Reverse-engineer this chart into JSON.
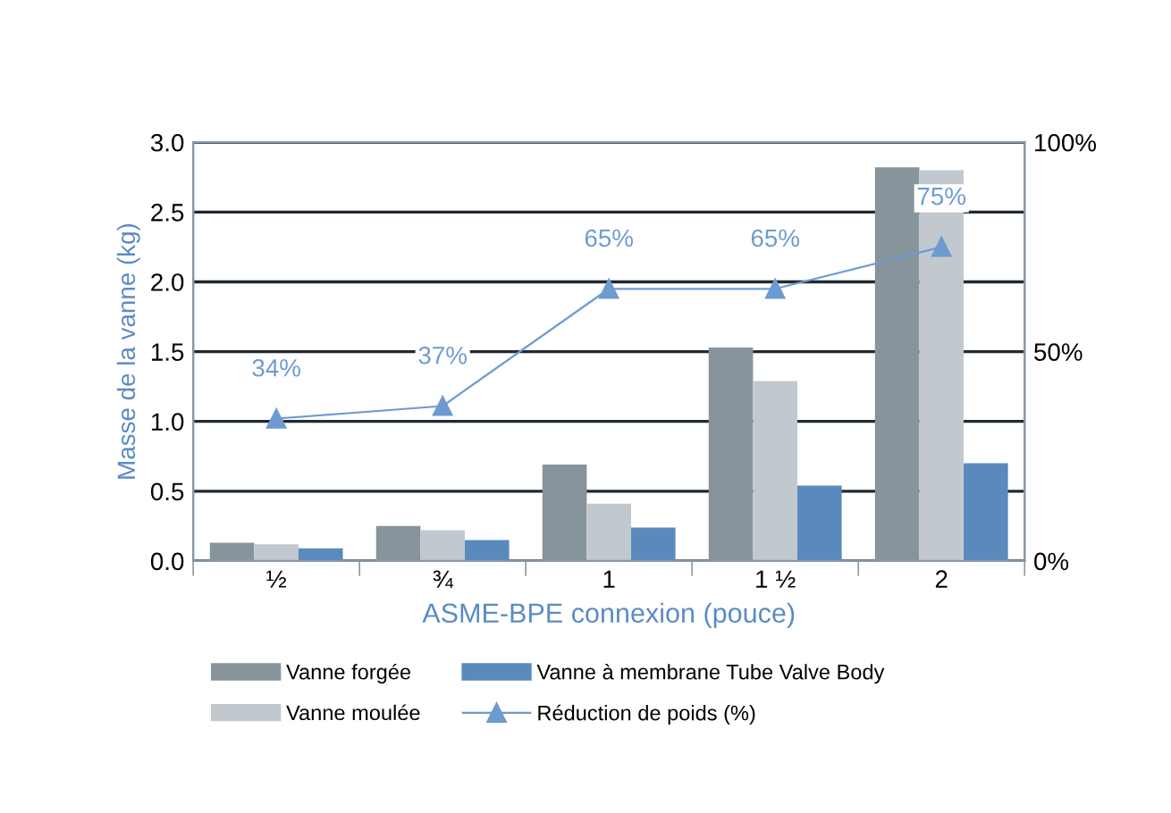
{
  "chart_data": {
    "type": "bar",
    "xlabel": "ASME-BPE connexion (pouce)",
    "ylabel": "Masse de la vanne (kg)",
    "categories": [
      "½",
      "¾",
      "1",
      "1 ½",
      "2"
    ],
    "series": [
      {
        "name": "Vanne forgée",
        "color": "#87949c",
        "values": [
          0.13,
          0.25,
          0.69,
          1.53,
          2.82
        ]
      },
      {
        "name": "Vanne moulée",
        "color": "#c1c9cf",
        "values": [
          0.12,
          0.22,
          0.41,
          1.29,
          2.8
        ]
      },
      {
        "name": "Vanne à membrane Tube Valve Body",
        "color": "#5a8abb",
        "values": [
          0.09,
          0.15,
          0.24,
          0.54,
          0.7
        ]
      },
      {
        "name": "Réduction de poids (%)",
        "type": "line",
        "axis": "y2",
        "color": "#6d9bd0",
        "marker": "triangle",
        "values": [
          34,
          37,
          65,
          65,
          75
        ],
        "value_labels": [
          "34%",
          "37%",
          "65%",
          "65%",
          "75%"
        ]
      }
    ],
    "ylim": [
      0,
      3
    ],
    "yticks": [
      {
        "value": 0,
        "label": "0.0"
      },
      {
        "value": 0.5,
        "label": "0.5"
      },
      {
        "value": 1,
        "label": "1.0"
      },
      {
        "value": 1.5,
        "label": "1.5"
      },
      {
        "value": 2,
        "label": "2.0"
      },
      {
        "value": 2.5,
        "label": "2.5"
      },
      {
        "value": 3,
        "label": "3.0"
      }
    ],
    "y2lim": [
      0,
      100
    ],
    "y2ticks": [
      {
        "value": 0,
        "label": "0%"
      },
      {
        "value": 50,
        "label": "50%"
      },
      {
        "value": 100,
        "label": "100%"
      }
    ],
    "grid": "y",
    "legend": "bottom"
  }
}
